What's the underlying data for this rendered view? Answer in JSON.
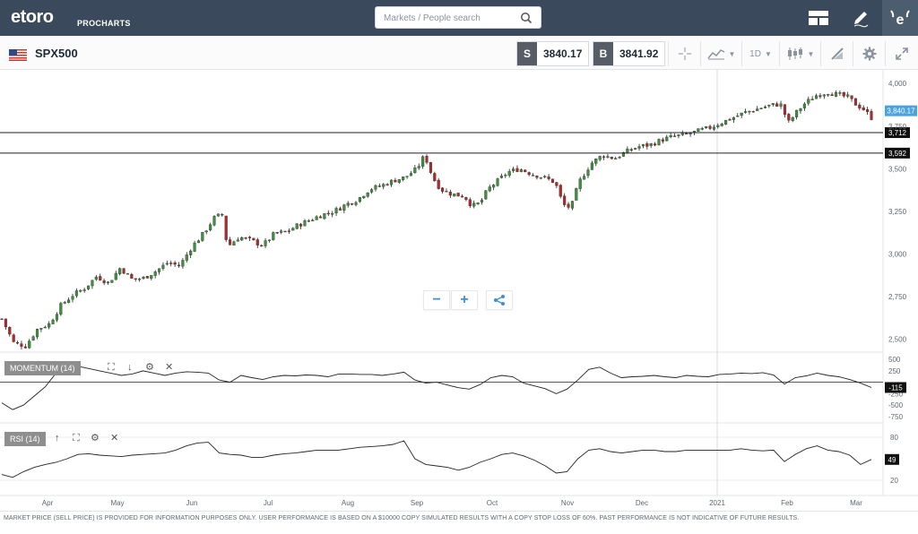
{
  "header": {
    "logo": "etoro",
    "logo_sub": "PROCHARTS",
    "search_placeholder": "Markets / People search",
    "icons": [
      "layout-icon",
      "pencil-icon",
      "etoro-e-icon"
    ]
  },
  "toolbar": {
    "symbol": "SPX500",
    "sell_tag": "S",
    "sell_price": "3840.17",
    "buy_tag": "B",
    "buy_price": "3841.92",
    "timeframe": "1D",
    "icons": [
      "crosshair-icon",
      "line-chart-icon",
      "candlestick-icon",
      "drawing-icon",
      "gear-icon",
      "fullscreen-icon"
    ]
  },
  "zoom": {
    "minus": "−",
    "plus": "+"
  },
  "indicators": {
    "momentum": {
      "label": "MOMENTUM (14)",
      "value_badge": "-115",
      "ticks": [
        "500",
        "250",
        "-250",
        "-500",
        "-750"
      ]
    },
    "rsi": {
      "label": "RSI (14)",
      "value_badge": "49",
      "ticks": [
        "80",
        "20"
      ]
    }
  },
  "disclaimer": "MARKET PRICE (SELL PRICE) IS PROVIDED FOR INFORMATION PURPOSES ONLY. USER PERFORMANCE IS BASED ON A $10000 COPY SIMULATED RESULTS WITH A COPY STOP LOSS OF 60%. PAST PERFORMANCE IS NOT INDICATIVE OF FUTURE RESULTS.",
  "chart_data": {
    "type": "candlestick",
    "y_ticks": [
      "4,000",
      "3,750",
      "3,500",
      "3,250",
      "3,000",
      "2,750",
      "2,500"
    ],
    "ylim": [
      2430,
      4080
    ],
    "x_ticks": [
      "Apr",
      "May",
      "Jun",
      "Jul",
      "Aug",
      "Sep",
      "Oct",
      "Nov",
      "Dec",
      "2021",
      "Feb",
      "Mar"
    ],
    "current_price_badge": "3,840.17",
    "horizontal_lines": [
      {
        "label": "3,712",
        "value": 3712
      },
      {
        "label": "3,592",
        "value": 3592
      }
    ],
    "close_path": [
      [
        0,
        2620
      ],
      [
        6,
        2480
      ],
      [
        12,
        2460
      ],
      [
        18,
        2560
      ],
      [
        24,
        2590
      ],
      [
        30,
        2700
      ],
      [
        36,
        2760
      ],
      [
        42,
        2800
      ],
      [
        48,
        2870
      ],
      [
        54,
        2830
      ],
      [
        60,
        2920
      ],
      [
        66,
        2850
      ],
      [
        72,
        2860
      ],
      [
        78,
        2900
      ],
      [
        84,
        2950
      ],
      [
        90,
        2930
      ],
      [
        96,
        3040
      ],
      [
        102,
        3120
      ],
      [
        108,
        3220
      ],
      [
        112,
        3230
      ],
      [
        114,
        3040
      ],
      [
        120,
        3100
      ],
      [
        126,
        3080
      ],
      [
        132,
        3050
      ],
      [
        138,
        3120
      ],
      [
        144,
        3130
      ],
      [
        150,
        3170
      ],
      [
        156,
        3200
      ],
      [
        162,
        3230
      ],
      [
        168,
        3250
      ],
      [
        174,
        3290
      ],
      [
        180,
        3320
      ],
      [
        186,
        3380
      ],
      [
        192,
        3400
      ],
      [
        198,
        3430
      ],
      [
        204,
        3450
      ],
      [
        210,
        3500
      ],
      [
        214,
        3580
      ],
      [
        218,
        3450
      ],
      [
        222,
        3380
      ],
      [
        228,
        3350
      ],
      [
        234,
        3340
      ],
      [
        238,
        3280
      ],
      [
        242,
        3300
      ],
      [
        246,
        3380
      ],
      [
        250,
        3420
      ],
      [
        256,
        3480
      ],
      [
        262,
        3500
      ],
      [
        268,
        3470
      ],
      [
        274,
        3450
      ],
      [
        280,
        3420
      ],
      [
        284,
        3290
      ],
      [
        288,
        3270
      ],
      [
        292,
        3420
      ],
      [
        298,
        3530
      ],
      [
        304,
        3580
      ],
      [
        310,
        3560
      ],
      [
        316,
        3600
      ],
      [
        322,
        3630
      ],
      [
        328,
        3640
      ],
      [
        334,
        3670
      ],
      [
        340,
        3690
      ],
      [
        346,
        3700
      ],
      [
        352,
        3720
      ],
      [
        358,
        3740
      ],
      [
        364,
        3770
      ],
      [
        370,
        3800
      ],
      [
        376,
        3830
      ],
      [
        382,
        3850
      ],
      [
        388,
        3870
      ],
      [
        394,
        3880
      ],
      [
        398,
        3770
      ],
      [
        402,
        3830
      ],
      [
        406,
        3880
      ],
      [
        412,
        3930
      ],
      [
        418,
        3950
      ],
      [
        424,
        3930
      ],
      [
        428,
        3920
      ],
      [
        432,
        3880
      ],
      [
        436,
        3850
      ],
      [
        440,
        3800
      ]
    ],
    "momentum_series": [
      -450,
      -600,
      -500,
      -300,
      -100,
      200,
      350,
      350,
      300,
      250,
      200,
      150,
      180,
      250,
      200,
      150,
      200,
      230,
      220,
      200,
      50,
      0,
      150,
      100,
      60,
      120,
      150,
      140,
      160,
      150,
      120,
      180,
      180,
      170,
      170,
      150,
      180,
      220,
      50,
      -20,
      0,
      -60,
      -120,
      -150,
      -50,
      100,
      150,
      120,
      -20,
      -80,
      -140,
      -250,
      -150,
      50,
      280,
      330,
      200,
      100,
      120,
      130,
      150,
      120,
      100,
      150,
      130,
      120,
      170,
      180,
      200,
      190,
      210,
      160,
      -40,
      100,
      140,
      200,
      150,
      120,
      60,
      -20,
      -115
    ],
    "rsi_series": [
      28,
      24,
      32,
      38,
      42,
      45,
      50,
      56,
      57,
      55,
      54,
      53,
      55,
      56,
      57,
      58,
      62,
      68,
      72,
      73,
      58,
      56,
      55,
      52,
      52,
      55,
      57,
      58,
      60,
      62,
      62,
      62,
      64,
      66,
      67,
      68,
      70,
      75,
      50,
      42,
      40,
      38,
      34,
      38,
      45,
      50,
      56,
      58,
      54,
      48,
      40,
      30,
      32,
      50,
      62,
      64,
      60,
      58,
      60,
      62,
      62,
      60,
      60,
      62,
      62,
      62,
      62,
      62,
      64,
      62,
      61,
      62,
      46,
      56,
      64,
      68,
      62,
      60,
      55,
      42,
      49
    ]
  }
}
